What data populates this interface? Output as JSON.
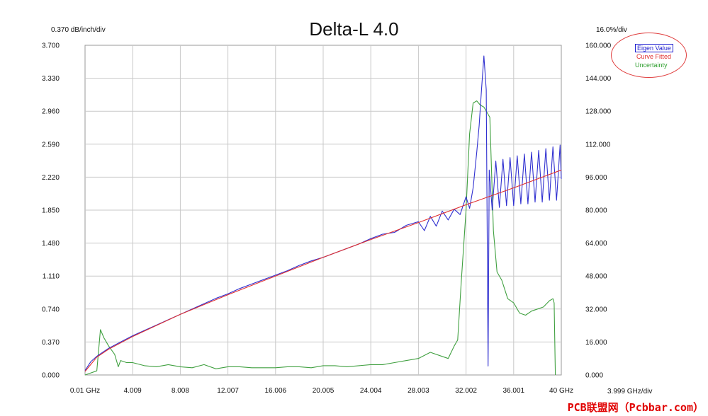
{
  "chart_data": {
    "type": "line",
    "title": "Delta-L 4.0",
    "left_axis_label": "0.370 dB/inch/div",
    "right_axis_label": "16.0%/div",
    "x_axis_label": "3.999 GHz/div",
    "x_ticks": [
      "0.01 GHz",
      "4.009",
      "8.008",
      "12.007",
      "16.006",
      "20.005",
      "24.004",
      "28.003",
      "32.002",
      "36.001",
      "40 GHz"
    ],
    "x_tick_values": [
      0.01,
      4.009,
      8.008,
      12.007,
      16.006,
      20.005,
      24.004,
      28.003,
      32.002,
      36.001,
      40
    ],
    "y_left_ticks": [
      "0.000",
      "0.370",
      "0.740",
      "1.110",
      "1.480",
      "1.850",
      "2.220",
      "2.590",
      "2.960",
      "3.330",
      "3.700"
    ],
    "y_right_ticks": [
      "0.000",
      "16.000",
      "32.000",
      "48.000",
      "64.000",
      "80.000",
      "96.000",
      "112.000",
      "128.000",
      "144.000",
      "160.000"
    ],
    "xlim": [
      0.01,
      40
    ],
    "ylim_left": [
      0,
      3.7
    ],
    "ylim_right": [
      0,
      160
    ],
    "grid": true,
    "legend_position": "top-right",
    "series": [
      {
        "name": "Eigen Value",
        "axis": "left",
        "color": "#3030d0",
        "x": [
          0.01,
          0.5,
          1,
          2,
          3,
          4,
          5,
          6,
          7,
          8,
          9,
          10,
          11,
          12,
          13,
          14,
          15,
          16,
          17,
          18,
          19,
          20,
          21,
          22,
          23,
          24,
          25,
          26,
          27,
          28,
          28.5,
          29,
          29.5,
          30,
          30.5,
          31,
          31.5,
          32,
          32.3,
          32.6,
          32.9,
          33.1,
          33.3,
          33.5,
          33.7,
          33.85,
          33.95,
          34.2,
          34.5,
          34.8,
          35.1,
          35.4,
          35.7,
          36.0,
          36.3,
          36.6,
          36.9,
          37.2,
          37.5,
          37.8,
          38.1,
          38.4,
          38.7,
          39.0,
          39.3,
          39.6,
          39.9,
          40
        ],
        "y": [
          0.05,
          0.15,
          0.21,
          0.3,
          0.37,
          0.44,
          0.5,
          0.56,
          0.62,
          0.68,
          0.74,
          0.8,
          0.86,
          0.91,
          0.97,
          1.02,
          1.07,
          1.12,
          1.17,
          1.23,
          1.28,
          1.32,
          1.37,
          1.42,
          1.47,
          1.53,
          1.58,
          1.6,
          1.68,
          1.72,
          1.62,
          1.78,
          1.67,
          1.84,
          1.74,
          1.86,
          1.8,
          2.0,
          1.87,
          2.1,
          2.5,
          2.8,
          3.2,
          3.58,
          3.2,
          0.1,
          2.3,
          1.85,
          2.4,
          1.88,
          2.42,
          1.9,
          2.44,
          1.9,
          2.46,
          1.92,
          2.48,
          1.92,
          2.5,
          1.94,
          2.52,
          1.94,
          2.54,
          1.96,
          2.56,
          1.96,
          2.58,
          2.2
        ]
      },
      {
        "name": "Curve Fitted",
        "axis": "left",
        "color": "#e03030",
        "x": [
          0.01,
          1,
          2,
          4,
          8,
          12,
          16,
          20,
          24,
          28,
          32,
          36,
          40
        ],
        "y": [
          0.04,
          0.2,
          0.29,
          0.43,
          0.68,
          0.9,
          1.11,
          1.32,
          1.52,
          1.71,
          1.91,
          2.1,
          2.3
        ]
      },
      {
        "name": "Uncertainty",
        "axis": "right",
        "color": "#40a040",
        "x": [
          0.01,
          1,
          1.3,
          1.6,
          2,
          2.5,
          2.8,
          3,
          3.5,
          4,
          5,
          6,
          7,
          8,
          9,
          10,
          11,
          12,
          13,
          14,
          15,
          16,
          17,
          18,
          19,
          20,
          21,
          22,
          23,
          24,
          25,
          26,
          27,
          28,
          29,
          30,
          30.5,
          31,
          31.3,
          31.6,
          32,
          32.3,
          32.6,
          32.9,
          33.2,
          33.5,
          34,
          34.3,
          34.6,
          35,
          35.5,
          36,
          36.5,
          37,
          37.5,
          38,
          38.5,
          39,
          39.3,
          39.4,
          39.5
        ],
        "y": [
          0,
          2,
          22,
          18,
          14,
          10,
          4,
          7,
          6,
          6,
          4.5,
          4,
          5,
          4,
          3.5,
          5,
          3,
          4,
          4,
          3.5,
          3.5,
          3.5,
          4,
          4,
          3.5,
          4.5,
          4.5,
          4,
          4.5,
          5,
          5,
          6,
          7,
          8,
          11,
          9,
          8,
          14,
          17,
          45,
          80,
          117,
          132,
          133,
          131,
          130,
          125,
          70,
          50,
          46,
          37,
          35,
          30,
          29,
          31,
          32,
          33,
          36,
          37,
          35,
          0
        ]
      }
    ]
  },
  "watermark": "PCB联盟网（Pcbbar.com）"
}
